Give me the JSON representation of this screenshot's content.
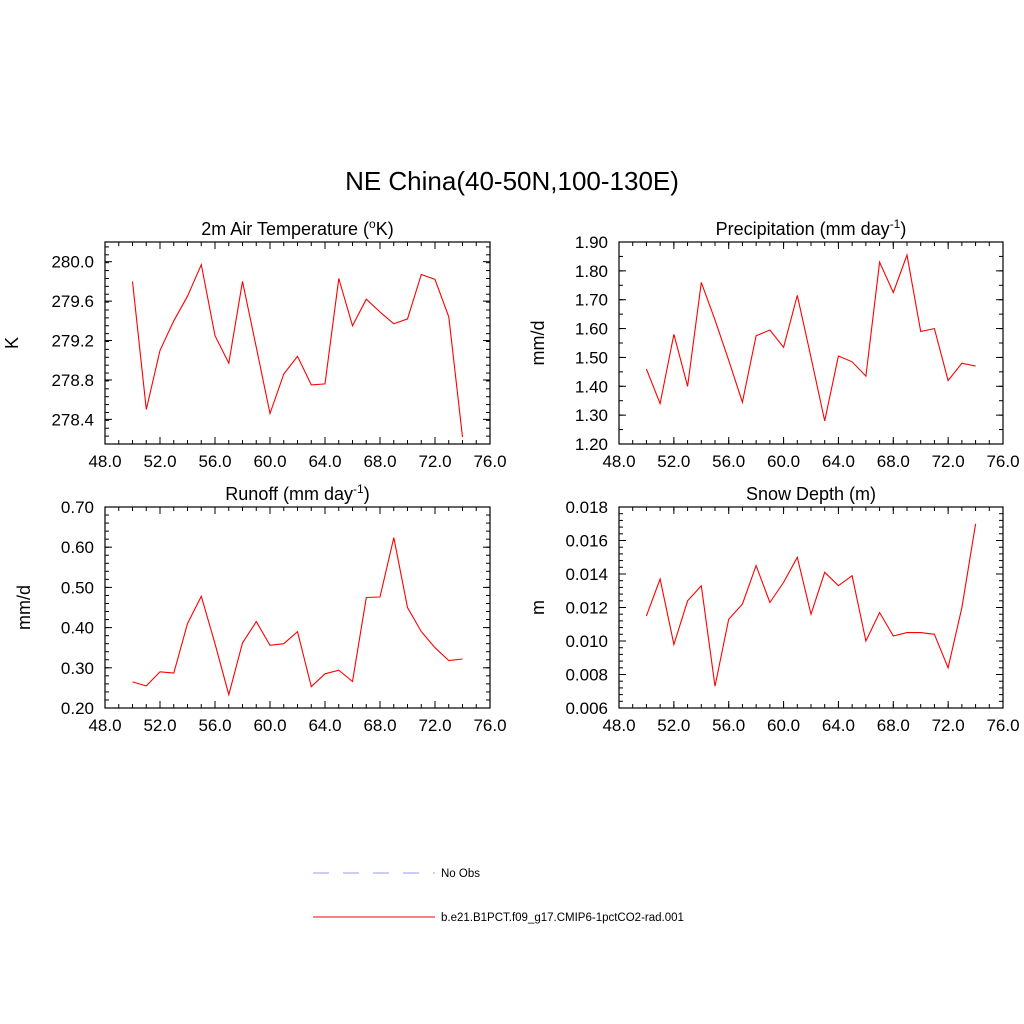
{
  "title": "NE China(40-50N,100-130E)",
  "line_color": "#ff0000",
  "legend": [
    {
      "label": "No Obs",
      "style": "dashed",
      "color": "#9999ff"
    },
    {
      "label": "b.e21.B1PCT.f09_g17.CMIP6-1pctCO2-rad.001",
      "style": "solid",
      "color": "#ff0000"
    }
  ],
  "chart_data": [
    {
      "type": "line",
      "title": "2m Air Temperature (°K)",
      "title_parts": [
        "2m Air Temperature (",
        "o",
        "K)"
      ],
      "ylabel": "K",
      "xlim": [
        48,
        76
      ],
      "ylim": [
        278.15,
        280.2
      ],
      "x_ticks": [
        "48.0",
        "52.0",
        "56.0",
        "60.0",
        "64.0",
        "68.0",
        "72.0",
        "76.0"
      ],
      "y_ticks": [
        "278.4",
        "278.8",
        "279.2",
        "279.6",
        "280.0"
      ],
      "series": [
        {
          "x": [
            50,
            51,
            52,
            53,
            54,
            55,
            56,
            57,
            58,
            59,
            60,
            61,
            62,
            63,
            64,
            65,
            66,
            67,
            68,
            69,
            70,
            71,
            72,
            73,
            74
          ],
          "y": [
            279.8,
            278.5,
            279.1,
            279.4,
            279.65,
            279.97,
            279.25,
            278.97,
            279.8,
            279.13,
            278.46,
            278.86,
            279.04,
            278.75,
            278.76,
            279.83,
            279.35,
            279.62,
            279.49,
            279.37,
            279.42,
            279.87,
            279.82,
            279.44,
            278.22
          ]
        }
      ]
    },
    {
      "type": "line",
      "title": "Precipitation (mm day-1)",
      "title_parts": [
        "Precipitation (mm day",
        "-1",
        ")"
      ],
      "ylabel": "mm/d",
      "xlim": [
        48,
        76
      ],
      "ylim": [
        1.2,
        1.9
      ],
      "x_ticks": [
        "48.0",
        "52.0",
        "56.0",
        "60.0",
        "64.0",
        "68.0",
        "72.0",
        "76.0"
      ],
      "y_ticks": [
        "1.20",
        "1.30",
        "1.40",
        "1.50",
        "1.60",
        "1.70",
        "1.80",
        "1.90"
      ],
      "series": [
        {
          "x": [
            50,
            51,
            52,
            53,
            54,
            55,
            56,
            57,
            58,
            59,
            60,
            61,
            62,
            63,
            64,
            65,
            66,
            67,
            68,
            69,
            70,
            71,
            72,
            73,
            74
          ],
          "y": [
            1.46,
            1.34,
            1.58,
            1.4,
            1.76,
            1.63,
            1.49,
            1.345,
            1.575,
            1.595,
            1.535,
            1.715,
            1.5,
            1.28,
            1.505,
            1.485,
            1.435,
            1.83,
            1.725,
            1.855,
            1.59,
            1.6,
            1.42,
            1.48,
            1.47
          ]
        }
      ]
    },
    {
      "type": "line",
      "title": "Runoff (mm day-1)",
      "title_parts": [
        "Runoff (mm day",
        "-1",
        ")"
      ],
      "ylabel": "mm/d",
      "xlim": [
        48,
        76
      ],
      "ylim": [
        0.2,
        0.7
      ],
      "x_ticks": [
        "48.0",
        "52.0",
        "56.0",
        "60.0",
        "64.0",
        "68.0",
        "72.0",
        "76.0"
      ],
      "y_ticks": [
        "0.20",
        "0.30",
        "0.40",
        "0.50",
        "0.60",
        "0.70"
      ],
      "series": [
        {
          "x": [
            50,
            51,
            52,
            53,
            54,
            55,
            56,
            57,
            58,
            59,
            60,
            61,
            62,
            63,
            64,
            65,
            66,
            67,
            68,
            69,
            70,
            71,
            72,
            73,
            74
          ],
          "y": [
            0.265,
            0.255,
            0.29,
            0.287,
            0.41,
            0.478,
            0.36,
            0.233,
            0.362,
            0.415,
            0.356,
            0.36,
            0.39,
            0.253,
            0.285,
            0.294,
            0.266,
            0.475,
            0.476,
            0.624,
            0.45,
            0.39,
            0.35,
            0.318,
            0.322
          ]
        }
      ]
    },
    {
      "type": "line",
      "title": "Snow Depth (m)",
      "title_parts": [
        "Snow Depth (m)",
        "",
        ""
      ],
      "ylabel": "m",
      "xlim": [
        48,
        76
      ],
      "ylim": [
        0.006,
        0.018
      ],
      "x_ticks": [
        "48.0",
        "52.0",
        "56.0",
        "60.0",
        "64.0",
        "68.0",
        "72.0",
        "76.0"
      ],
      "y_ticks": [
        "0.006",
        "0.008",
        "0.010",
        "0.012",
        "0.014",
        "0.016",
        "0.018"
      ],
      "series": [
        {
          "x": [
            50,
            51,
            52,
            53,
            54,
            55,
            56,
            57,
            58,
            59,
            60,
            61,
            62,
            63,
            64,
            65,
            66,
            67,
            68,
            69,
            70,
            71,
            72,
            73,
            74
          ],
          "y": [
            0.0115,
            0.0137,
            0.0098,
            0.0124,
            0.0133,
            0.0073,
            0.0113,
            0.0122,
            0.0145,
            0.0123,
            0.0135,
            0.015,
            0.0116,
            0.0141,
            0.0133,
            0.0139,
            0.01,
            0.0117,
            0.0103,
            0.0105,
            0.0105,
            0.0104,
            0.0084,
            0.012,
            0.017
          ]
        }
      ]
    }
  ]
}
